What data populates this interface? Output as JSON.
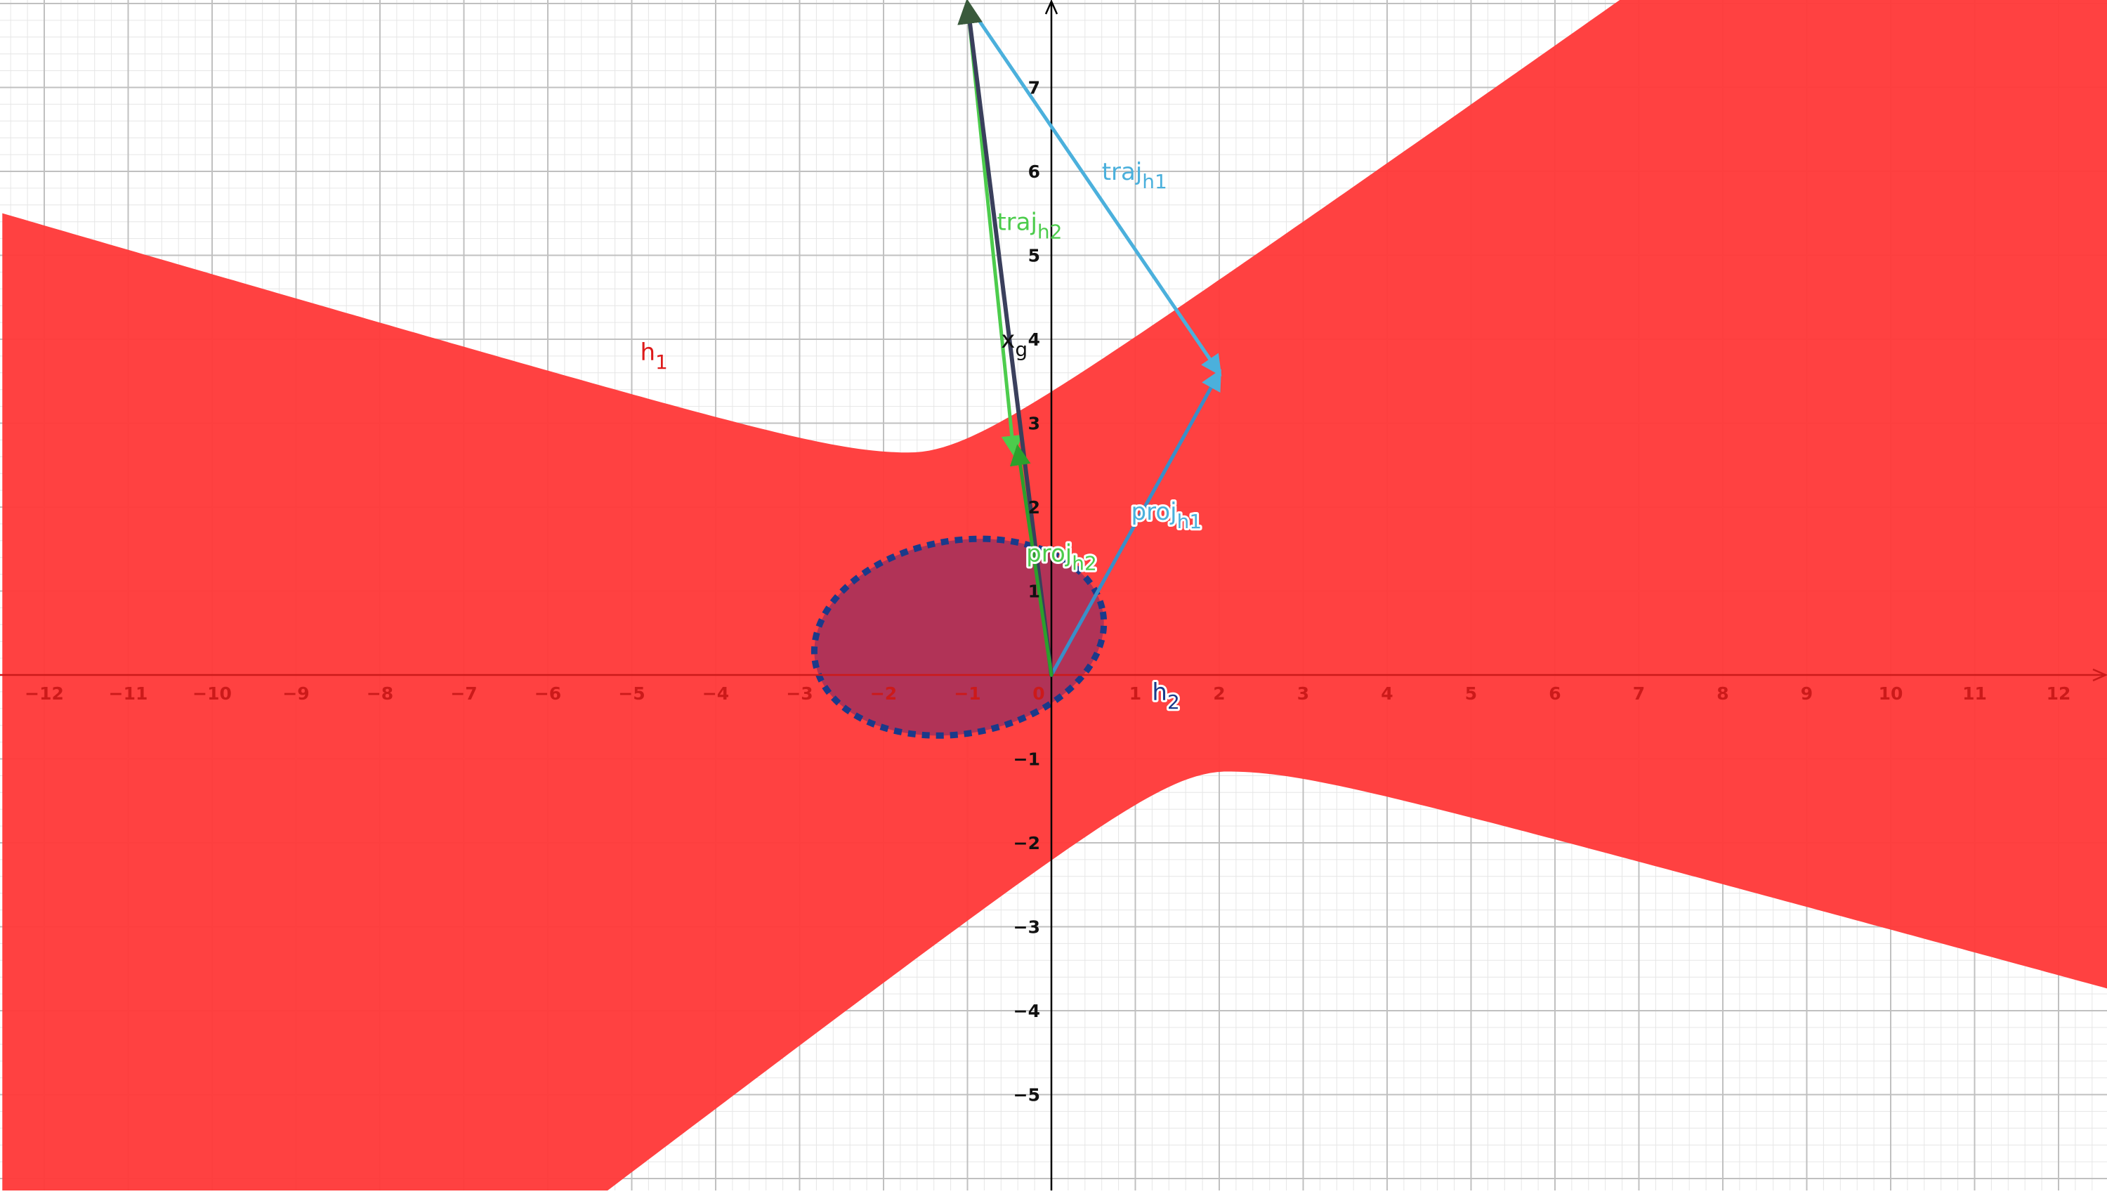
{
  "graph": {
    "x_range": [
      -12.5,
      12.6
    ],
    "y_range": [
      -6.1,
      8.1
    ],
    "x_ticks": [
      -12,
      -11,
      -10,
      -9,
      -8,
      -7,
      -6,
      -5,
      -4,
      -3,
      -2,
      -1,
      0,
      1,
      2,
      3,
      4,
      5,
      6,
      7,
      8,
      9,
      10,
      11,
      12
    ],
    "y_ticks": [
      -5,
      -4,
      -3,
      -2,
      -1,
      1,
      2,
      3,
      4,
      5,
      6,
      7
    ],
    "colors": {
      "axis": "#000000",
      "grid_major": "#c0c0c0",
      "grid_minor": "#e6e6e6",
      "h1_fill": "#ff3b3b",
      "h2_fill": "#a8325a",
      "h2_stroke": "#1a3a8a",
      "traj_h1": "#4bb0dc",
      "traj_h2": "#4ccc4c",
      "proj_h1": "#3a8fc8",
      "proj_h2": "#2ca02c",
      "dark_vector": "#3a3f5c",
      "x_tick_color": "#cc1a1a"
    }
  },
  "labels": {
    "h1": {
      "main": "h",
      "sub": "1",
      "x": -4.9,
      "y": 3.75
    },
    "h2": {
      "main": "h",
      "sub": "2",
      "x": 1.2,
      "y": -0.3
    },
    "traj_h1": {
      "main": "traj",
      "sub": "h1",
      "x": 0.6,
      "y": 5.9
    },
    "traj_h2": {
      "main": "traj",
      "sub": "h2",
      "x": -0.65,
      "y": 5.3
    },
    "proj_h1": {
      "main": "proj",
      "sub": "h1",
      "x": 0.95,
      "y": 1.85
    },
    "proj_h2": {
      "main": "proj",
      "sub": "h2",
      "x": -0.3,
      "y": 1.35
    },
    "x_g": {
      "main": "x",
      "sub": "g",
      "x": -0.6,
      "y": 3.9
    }
  },
  "shapes": {
    "h1_region": {
      "type": "hyperbola-band",
      "upper_vertex": [
        -1.7,
        2.65
      ],
      "lower_vertex": [
        2.1,
        -1.15
      ]
    },
    "h2_ellipse": {
      "center": [
        -1.1,
        0.45
      ],
      "semi_axes": [
        2.9,
        2.3
      ],
      "rotation_deg": 10,
      "style": "dashed"
    },
    "points": {
      "origin": [
        0,
        0
      ],
      "start": [
        -1,
        8.0
      ],
      "traj_h1_end": [
        2.0,
        3.6
      ],
      "traj_h2_end": [
        -0.45,
        2.65
      ],
      "proj_h2_end": [
        -0.4,
        2.7
      ]
    }
  }
}
